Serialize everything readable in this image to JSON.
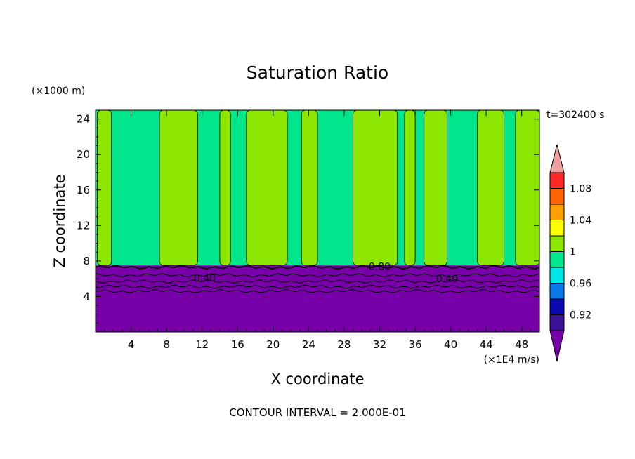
{
  "chart_data": {
    "type": "heatmap",
    "title": "Saturation Ratio",
    "time_label": "t=302400 s",
    "xlabel": "X coordinate",
    "ylabel": "Z coordinate",
    "x_unit": "(×1E4 m/s)",
    "y_unit": "(×1000 m)",
    "xlim": [
      0,
      50
    ],
    "ylim": [
      0,
      25
    ],
    "x_ticks": [
      4,
      8,
      12,
      16,
      20,
      24,
      28,
      32,
      36,
      40,
      44,
      48
    ],
    "y_ticks": [
      4,
      8,
      12,
      16,
      20,
      24
    ],
    "contour_interval_text": "CONTOUR INTERVAL = 2.000E-01",
    "colorbar": {
      "levels": [
        0.9,
        0.92,
        0.94,
        0.96,
        0.98,
        1.0,
        1.02,
        1.04,
        1.06,
        1.08,
        1.1
      ],
      "labels": [
        "0.92",
        "0.96",
        "1",
        "1.04",
        "1.08"
      ],
      "colors": [
        "#3d129b",
        "#0a0ab4",
        "#0878e6",
        "#00e6e6",
        "#00e68c",
        "#8ce600",
        "#ffff00",
        "#ffa000",
        "#ff6400",
        "#ff2828"
      ],
      "under_color": "#7800a8",
      "over_color": "#f0a0a0"
    },
    "contour_labels": [
      {
        "text": "0.40",
        "x": 12.3,
        "z": 6.1
      },
      {
        "text": "0.80",
        "x": 32.0,
        "z": 7.4
      },
      {
        "text": "0.40",
        "x": 39.6,
        "z": 6.0
      }
    ],
    "regions": {
      "dry_layer_top_z": 7.5,
      "background_value": 0.99,
      "supersaturated_columns": [
        {
          "x_start": 0.2,
          "x_end": 1.8,
          "value": 1.01
        },
        {
          "x_start": 7.2,
          "x_end": 11.5,
          "value": 1.01
        },
        {
          "x_start": 14.0,
          "x_end": 15.2,
          "value": 1.01
        },
        {
          "x_start": 17.0,
          "x_end": 21.6,
          "value": 1.01
        },
        {
          "x_start": 23.2,
          "x_end": 25.0,
          "value": 1.01
        },
        {
          "x_start": 29.0,
          "x_end": 34.0,
          "value": 1.01
        },
        {
          "x_start": 34.8,
          "x_end": 36.0,
          "value": 1.01
        },
        {
          "x_start": 37.0,
          "x_end": 39.6,
          "value": 1.01
        },
        {
          "x_start": 43.0,
          "x_end": 46.0,
          "value": 1.01
        },
        {
          "x_start": 47.3,
          "x_end": 50.0,
          "value": 1.01
        }
      ]
    }
  }
}
